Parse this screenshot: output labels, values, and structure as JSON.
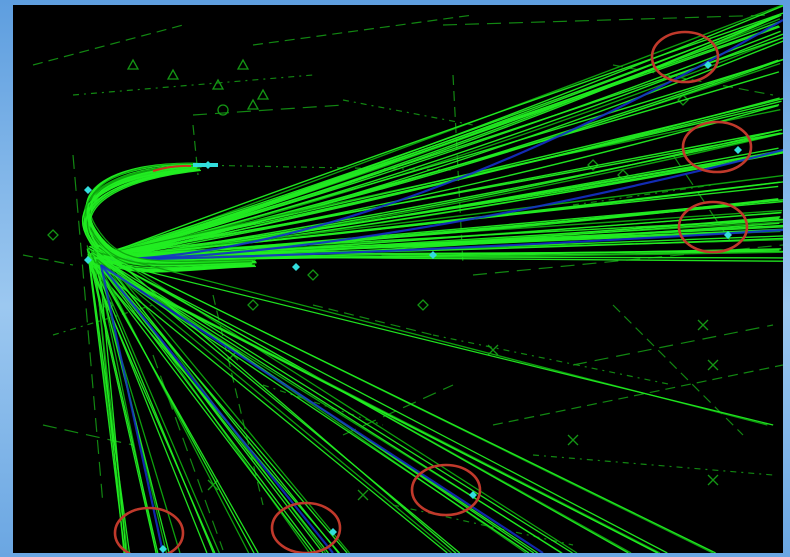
{
  "colors": {
    "frame": "#7fb4e6",
    "background": "#000000",
    "track": "#22ee22",
    "track_dark": "#0fa80f",
    "track_core": "#1430c8",
    "map_line": "#149614",
    "marker": "#33dddd",
    "highlight_circle": "#c0392b",
    "turn_start": "#d03020"
  },
  "map": {
    "description_items": [
      "arrival-flight-tracks",
      "holding-turn",
      "departure-fan",
      "highlighted-fixes"
    ],
    "highlighted_fix_count": 6
  }
}
